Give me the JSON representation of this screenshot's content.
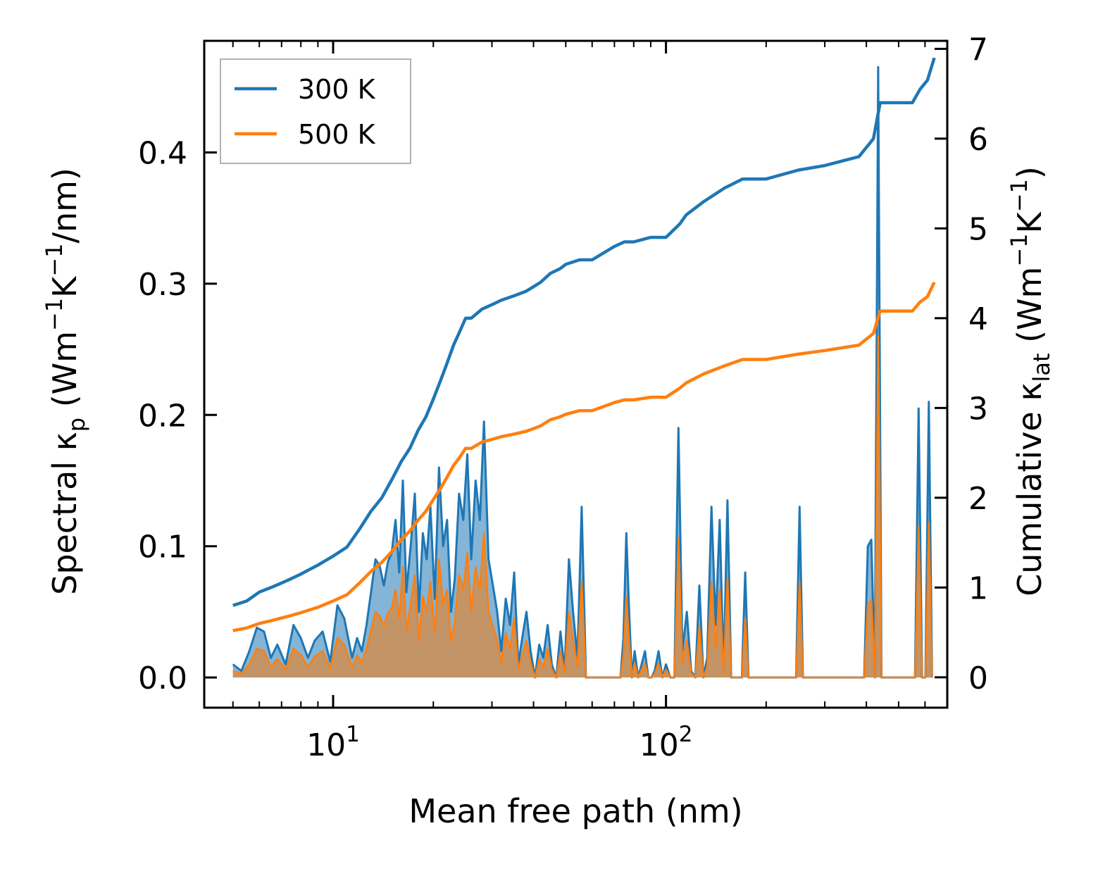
{
  "chart_data": {
    "type": "line",
    "xscale": "log",
    "xlim": [
      4.1,
      700
    ],
    "ylim_left": [
      -0.023,
      0.485
    ],
    "ylim_right": [
      -0.338,
      7.089
    ],
    "xlabel": "Mean free path (nm)",
    "ylabel_left": {
      "prefix": "Spectral κ",
      "sub": "p",
      "open": " (Wm",
      "sup1": "−1",
      "mid": "K",
      "sup2": "−1",
      "close": "/nm)"
    },
    "ylabel_right": {
      "prefix": "Cumulative κ",
      "sub": "lat",
      "open": " (Wm",
      "sup1": "−1",
      "mid": "K",
      "sup2": "−1",
      "close": ")"
    },
    "x_major_ticks": [
      {
        "value": 10,
        "base": "10",
        "exp": "1"
      },
      {
        "value": 100,
        "base": "10",
        "exp": "2"
      }
    ],
    "yticks_left": [
      {
        "value": 0.0,
        "label": "0.0"
      },
      {
        "value": 0.1,
        "label": "0.1"
      },
      {
        "value": 0.2,
        "label": "0.2"
      },
      {
        "value": 0.3,
        "label": "0.3"
      },
      {
        "value": 0.4,
        "label": "0.4"
      }
    ],
    "yticks_right": [
      {
        "value": 0,
        "label": "0"
      },
      {
        "value": 1,
        "label": "1"
      },
      {
        "value": 2,
        "label": "2"
      },
      {
        "value": 3,
        "label": "3"
      },
      {
        "value": 4,
        "label": "4"
      },
      {
        "value": 5,
        "label": "5"
      },
      {
        "value": 6,
        "label": "6"
      },
      {
        "value": 7,
        "label": "7"
      }
    ],
    "legend": {
      "position": "top-left",
      "entries": [
        {
          "label": "300 K",
          "color": "#1f77b4"
        },
        {
          "label": "500 K",
          "color": "#ff7f0e"
        }
      ]
    },
    "spectral_x": [
      5.0,
      5.3,
      5.6,
      5.9,
      6.2,
      6.5,
      6.8,
      7.2,
      7.6,
      8.0,
      8.4,
      8.8,
      9.3,
      9.8,
      10.3,
      10.8,
      11.4,
      11.8,
      12.2,
      12.6,
      13.0,
      13.4,
      13.8,
      14.2,
      14.6,
      15.0,
      15.4,
      15.8,
      16.2,
      16.6,
      17.1,
      17.6,
      18.1,
      18.6,
      19.1,
      19.6,
      20.2,
      20.8,
      21.4,
      22.0,
      22.6,
      23.2,
      23.9,
      24.6,
      25.3,
      26.0,
      26.8,
      27.6,
      28.4,
      29.3,
      30.2,
      31.1,
      32.0,
      33.0,
      34.0,
      35.0,
      36.0,
      37.0,
      38.1,
      39.2,
      40.4,
      41.6,
      42.8,
      44.1,
      45.4,
      46.8,
      48.2,
      49.6,
      51.1,
      52.6,
      54.2,
      55.8,
      57.5,
      59.2,
      73.0,
      74.5,
      76.0,
      77.5,
      79.0,
      80.5,
      82.5,
      84.5,
      86.5,
      88.5,
      90.5,
      92.5,
      95.0,
      97.5,
      100.0,
      103.0,
      106.0,
      109.0,
      112.0,
      115.5,
      119.0,
      122.5,
      126.0,
      129.5,
      133.0,
      137.0,
      141.0,
      145.0,
      149.0,
      153.0,
      157.0,
      161.0,
      165.0,
      169.0,
      173.0,
      177.0,
      246.0,
      252.0,
      258.0,
      264.0,
      384.0,
      394.0,
      404.0,
      414.0,
      424.0,
      434.0,
      444.0,
      454.0,
      464.0,
      560.0,
      574.0,
      588.0,
      602.0,
      616.0,
      630.0
    ],
    "spectral_300K": [
      0.01,
      0.005,
      0.02,
      0.038,
      0.035,
      0.015,
      0.025,
      0.01,
      0.04,
      0.03,
      0.015,
      0.028,
      0.035,
      0.012,
      0.055,
      0.045,
      0.015,
      0.03,
      0.02,
      0.04,
      0.065,
      0.09,
      0.085,
      0.07,
      0.088,
      0.095,
      0.12,
      0.08,
      0.15,
      0.065,
      0.1,
      0.14,
      0.05,
      0.11,
      0.09,
      0.13,
      0.06,
      0.16,
      0.1,
      0.12,
      0.05,
      0.075,
      0.14,
      0.12,
      0.17,
      0.09,
      0.15,
      0.12,
      0.195,
      0.09,
      0.07,
      0.05,
      0.02,
      0.06,
      0.04,
      0.08,
      0.01,
      0.03,
      0.05,
      0.02,
      0.0,
      0.025,
      0.015,
      0.04,
      0.01,
      0.0,
      0.035,
      0.005,
      0.09,
      0.05,
      0.015,
      0.13,
      0.0,
      0.0,
      0.0,
      0.03,
      0.11,
      0.05,
      0.0,
      0.02,
      0.0,
      0.01,
      0.02,
      0.0,
      0.0,
      0.005,
      0.02,
      0.0,
      0.01,
      0.0,
      0.0,
      0.19,
      0.02,
      0.05,
      0.005,
      0.0,
      0.07,
      0.0,
      0.015,
      0.13,
      0.04,
      0.12,
      0.005,
      0.135,
      0.0,
      0.0,
      0.0,
      0.0,
      0.08,
      0.0,
      0.0,
      0.13,
      0.0,
      0.0,
      0.0,
      0.0,
      0.1,
      0.105,
      0.0,
      0.465,
      0.0,
      0.0,
      0.0,
      0.0,
      0.205,
      0.0,
      0.0,
      0.21,
      0.0
    ],
    "spectral_500K": [
      0.005,
      0.003,
      0.01,
      0.022,
      0.02,
      0.008,
      0.014,
      0.006,
      0.022,
      0.017,
      0.008,
      0.016,
      0.02,
      0.007,
      0.03,
      0.025,
      0.008,
      0.017,
      0.011,
      0.022,
      0.036,
      0.05,
      0.047,
      0.039,
      0.049,
      0.053,
      0.067,
      0.045,
      0.084,
      0.036,
      0.056,
      0.078,
      0.028,
      0.062,
      0.05,
      0.073,
      0.034,
      0.09,
      0.056,
      0.067,
      0.028,
      0.042,
      0.078,
      0.067,
      0.095,
      0.05,
      0.084,
      0.067,
      0.11,
      0.05,
      0.039,
      0.028,
      0.011,
      0.034,
      0.022,
      0.045,
      0.006,
      0.017,
      0.028,
      0.011,
      0.0,
      0.014,
      0.008,
      0.022,
      0.006,
      0.0,
      0.02,
      0.003,
      0.05,
      0.028,
      0.008,
      0.073,
      0.0,
      0.0,
      0.0,
      0.017,
      0.062,
      0.028,
      0.0,
      0.011,
      0.0,
      0.006,
      0.011,
      0.0,
      0.0,
      0.003,
      0.011,
      0.0,
      0.006,
      0.0,
      0.0,
      0.106,
      0.011,
      0.028,
      0.003,
      0.0,
      0.039,
      0.0,
      0.008,
      0.073,
      0.022,
      0.067,
      0.003,
      0.076,
      0.0,
      0.0,
      0.0,
      0.0,
      0.045,
      0.0,
      0.0,
      0.073,
      0.0,
      0.0,
      0.0,
      0.0,
      0.056,
      0.059,
      0.0,
      0.26,
      0.0,
      0.0,
      0.0,
      0.0,
      0.115,
      0.0,
      0.0,
      0.118,
      0.0
    ],
    "cumulative_300K": {
      "x": [
        5.0,
        5.5,
        6.0,
        6.5,
        7.0,
        7.5,
        8.0,
        9.0,
        10.0,
        11.0,
        12.0,
        13.0,
        14.0,
        15.0,
        16.0,
        17.0,
        18.0,
        19.0,
        20.0,
        21.0,
        22.0,
        23.0,
        24.0,
        25.0,
        26.0,
        28.0,
        30.0,
        32.0,
        35.0,
        38.0,
        40.0,
        42.0,
        45.0,
        48.0,
        50.0,
        55.0,
        60.0,
        70.0,
        75.0,
        80.0,
        90.0,
        100.0,
        110.0,
        115.0,
        130.0,
        150.0,
        170.0,
        200.0,
        250.0,
        300.0,
        380.0,
        420.0,
        440.0,
        460.0,
        550.0,
        580.0,
        610.0,
        640.0
      ],
      "y": [
        0.8,
        0.85,
        0.95,
        1.0,
        1.05,
        1.1,
        1.15,
        1.25,
        1.35,
        1.45,
        1.65,
        1.85,
        2.0,
        2.2,
        2.4,
        2.55,
        2.75,
        2.9,
        3.1,
        3.3,
        3.5,
        3.7,
        3.85,
        4.0,
        4.0,
        4.1,
        4.15,
        4.2,
        4.25,
        4.3,
        4.35,
        4.4,
        4.5,
        4.55,
        4.6,
        4.65,
        4.65,
        4.8,
        4.85,
        4.85,
        4.9,
        4.9,
        5.05,
        5.15,
        5.3,
        5.45,
        5.55,
        5.55,
        5.65,
        5.7,
        5.8,
        6.0,
        6.4,
        6.4,
        6.4,
        6.55,
        6.65,
        6.9
      ]
    },
    "cumulative_500K": {
      "x": [
        5.0,
        5.5,
        6.0,
        6.5,
        7.0,
        7.5,
        8.0,
        9.0,
        10.0,
        11.0,
        12.0,
        13.0,
        14.0,
        15.0,
        16.0,
        17.0,
        18.0,
        19.0,
        20.0,
        21.0,
        22.0,
        23.0,
        24.0,
        25.0,
        26.0,
        28.0,
        30.0,
        32.0,
        35.0,
        38.0,
        40.0,
        42.0,
        45.0,
        48.0,
        50.0,
        55.0,
        60.0,
        70.0,
        75.0,
        80.0,
        90.0,
        100.0,
        110.0,
        115.0,
        130.0,
        150.0,
        170.0,
        200.0,
        250.0,
        300.0,
        380.0,
        420.0,
        440.0,
        460.0,
        550.0,
        580.0,
        610.0,
        640.0
      ],
      "y": [
        0.52,
        0.55,
        0.6,
        0.63,
        0.66,
        0.69,
        0.72,
        0.78,
        0.85,
        0.92,
        1.05,
        1.18,
        1.28,
        1.4,
        1.53,
        1.63,
        1.75,
        1.85,
        1.98,
        2.1,
        2.23,
        2.36,
        2.45,
        2.55,
        2.55,
        2.62,
        2.65,
        2.68,
        2.71,
        2.74,
        2.77,
        2.8,
        2.87,
        2.9,
        2.93,
        2.97,
        2.97,
        3.06,
        3.09,
        3.09,
        3.12,
        3.12,
        3.22,
        3.28,
        3.38,
        3.47,
        3.54,
        3.54,
        3.6,
        3.64,
        3.7,
        3.83,
        4.08,
        4.08,
        4.08,
        4.18,
        4.24,
        4.4
      ]
    },
    "colors": {
      "blue": "#1f77b4",
      "orange": "#ff7f0e",
      "blue_fill": "#1f77b4",
      "mixed_fill": "#c39466"
    }
  }
}
